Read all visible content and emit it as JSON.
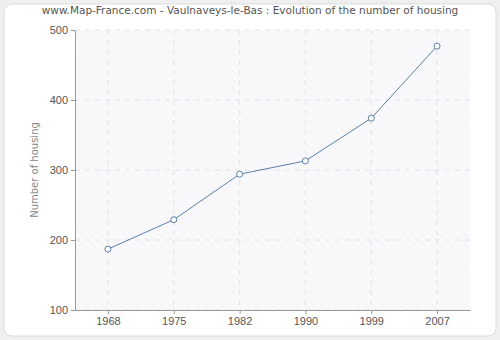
{
  "chart_data": {
    "type": "line",
    "title": "www.Map-France.com - Vaulnaveys-le-Bas : Evolution of the number of housing",
    "y_label": "Number of housing",
    "categories": [
      "1968",
      "1975",
      "1982",
      "1990",
      "1999",
      "2007"
    ],
    "values": [
      187,
      229,
      294,
      313,
      374,
      477
    ],
    "color": "#5a7fa8",
    "marker": "circle",
    "ylim": [
      100,
      500
    ],
    "yticks": [
      100,
      200,
      300,
      400,
      500
    ],
    "grid": true
  }
}
